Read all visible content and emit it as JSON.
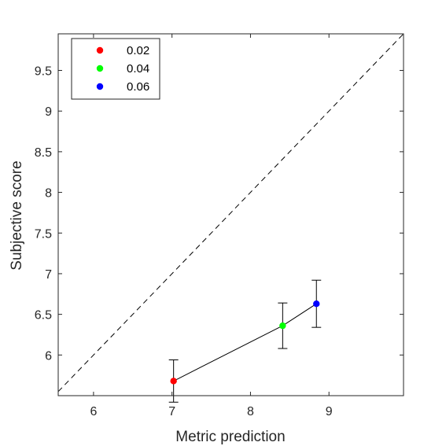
{
  "chart_data": {
    "type": "scatter",
    "title": "",
    "xlabel": "Metric prediction",
    "ylabel": "Subjective score",
    "xlim": [
      5.55,
      9.95
    ],
    "ylim": [
      5.5,
      9.95
    ],
    "xticks": [
      6,
      7,
      8,
      9
    ],
    "yticks": [
      6,
      6.5,
      7,
      7.5,
      8,
      8.5,
      9,
      9.5
    ],
    "xtick_labels": [
      "6",
      "7",
      "8",
      "9"
    ],
    "ytick_labels": [
      "6",
      "6.5",
      "7",
      "7.5",
      "8",
      "8.5",
      "9",
      "9.5"
    ],
    "grid": false,
    "identity_line": true,
    "legend_position": "top-left",
    "series": [
      {
        "name": "0.02",
        "color": "#ff0000",
        "x": 7.02,
        "y": 5.68,
        "err_low": 0.26,
        "err_high": 0.26
      },
      {
        "name": "0.04",
        "color": "#00ff00",
        "x": 8.41,
        "y": 6.36,
        "err_low": 0.28,
        "err_high": 0.28
      },
      {
        "name": "0.06",
        "color": "#0000ff",
        "x": 8.84,
        "y": 6.63,
        "err_low": 0.29,
        "err_high": 0.29
      }
    ],
    "connecting_line": true
  }
}
